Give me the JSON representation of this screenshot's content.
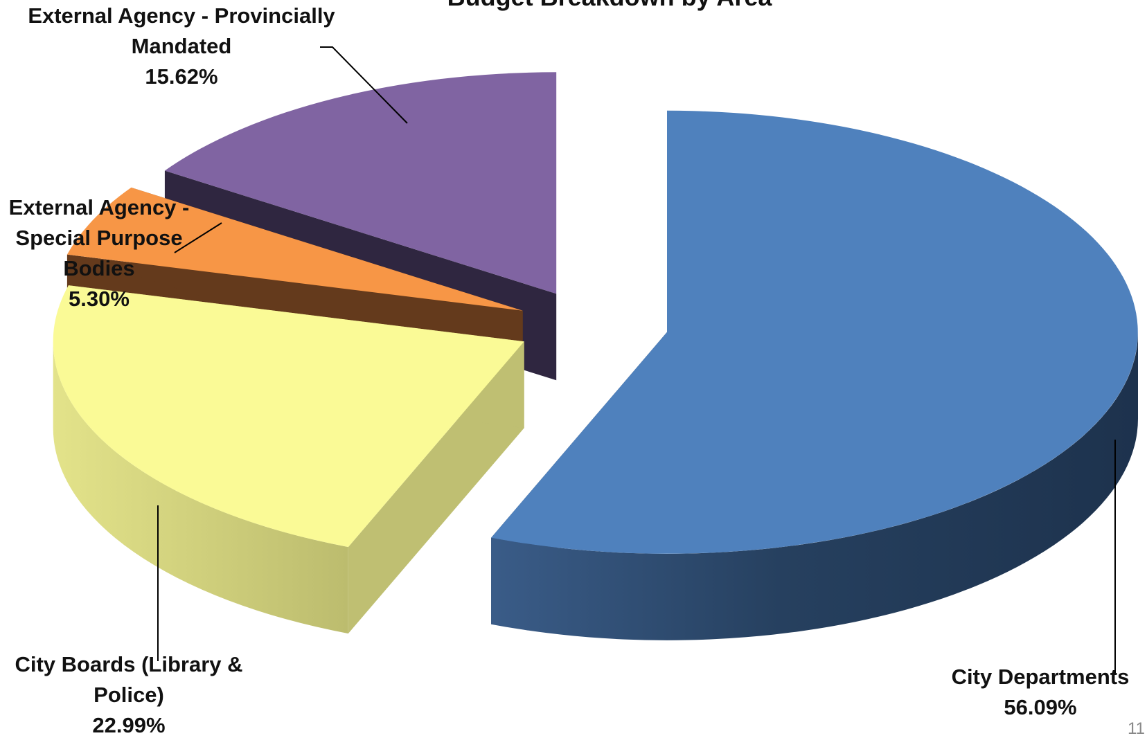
{
  "chart_data": {
    "type": "pie",
    "title": "Budget Breakdown by Area",
    "slices": [
      {
        "name": "City Departments",
        "value": 56.09,
        "label_lines": [
          "City Departments"
        ],
        "value_label": "56.09%",
        "color": "#4F81BD"
      },
      {
        "name": "City Boards (Library & Police)",
        "value": 22.99,
        "label_lines": [
          "City Boards (Library &",
          "Police)"
        ],
        "value_label": "22.99%",
        "color": "#FAFA96"
      },
      {
        "name": "External Agency - Special Purpose Bodies",
        "value": 5.3,
        "label_lines": [
          "External Agency -",
          "Special Purpose",
          "Bodies"
        ],
        "value_label": "5.30%",
        "color": "#F79646"
      },
      {
        "name": "External Agency - Provincially Mandated",
        "value": 15.62,
        "label_lines": [
          "External Agency - Provincially",
          "Mandated"
        ],
        "value_label": "15.62%",
        "color": "#8064A2"
      }
    ],
    "legend": "none",
    "style": "3d-exploded"
  },
  "page": {
    "number": "11"
  }
}
